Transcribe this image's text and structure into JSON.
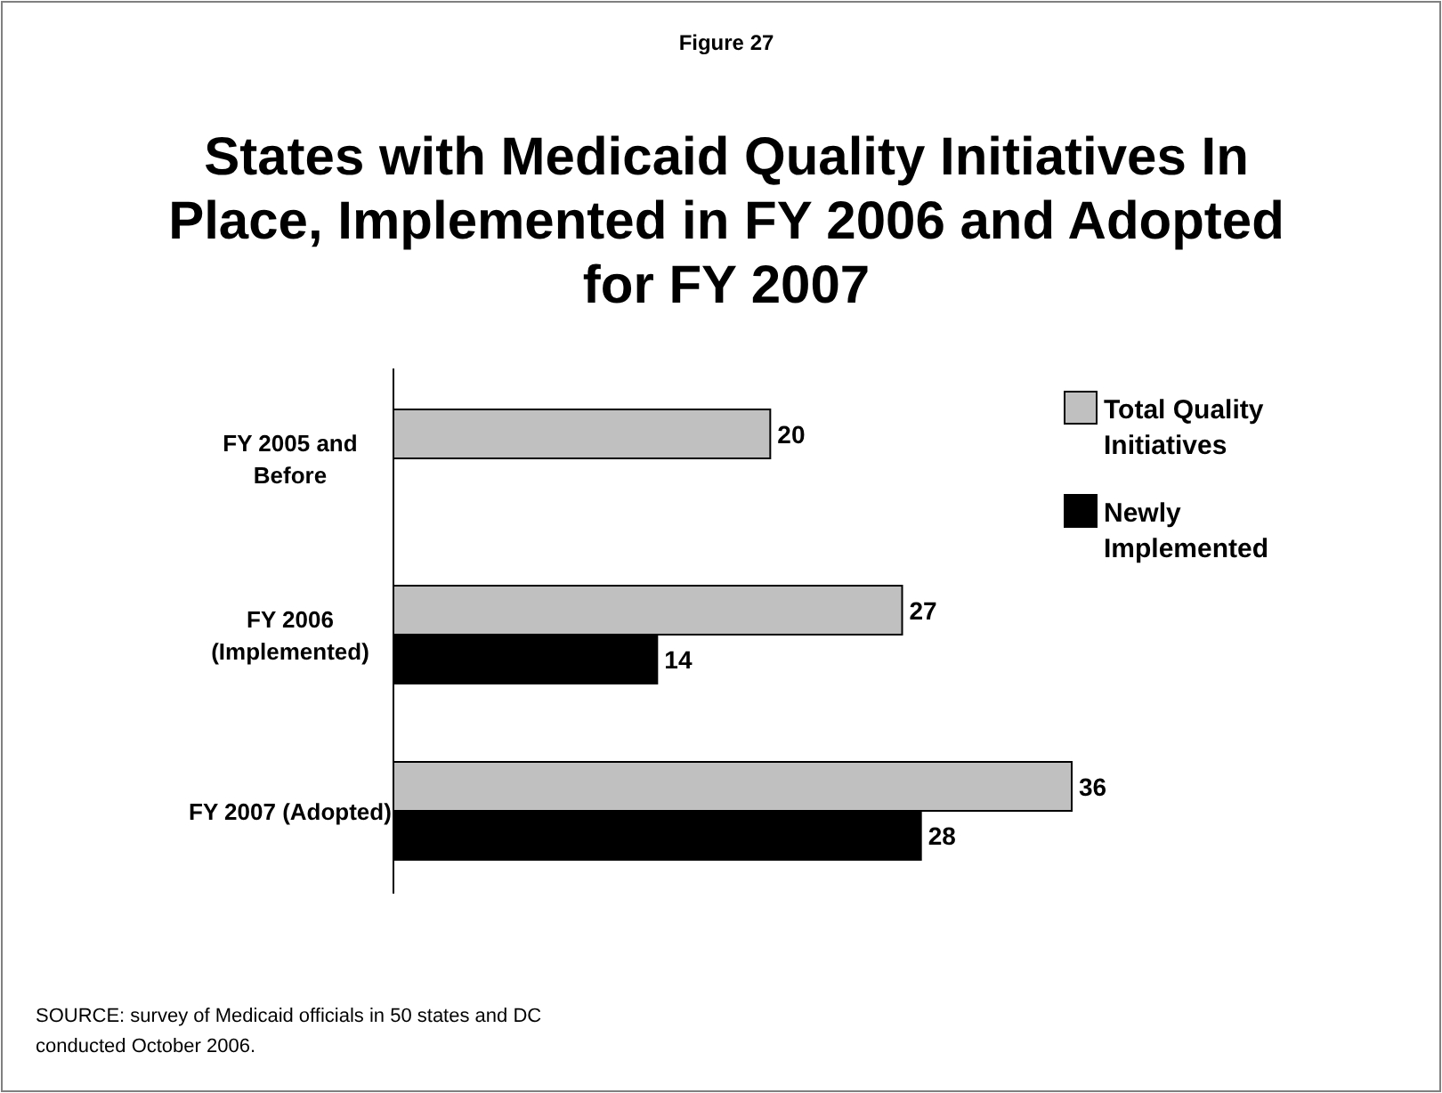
{
  "chart_data": {
    "type": "bar",
    "orientation": "horizontal",
    "subtitle": "Figure 27",
    "title": "States with Medicaid Quality Initiatives In\nPlace, Implemented in FY 2006 and Adopted\nfor FY 2007",
    "categories": [
      "FY 2005 and\nBefore",
      "FY 2006\n(Implemented)",
      "FY 2007 (Adopted)"
    ],
    "series": [
      {
        "name": "Total Quality\nInitiatives",
        "color": "#c0c0c0",
        "values": [
          20,
          27,
          36
        ]
      },
      {
        "name": "Newly\nImplemented",
        "color": "#000000",
        "values": [
          null,
          14,
          28
        ]
      }
    ],
    "data_labels": true,
    "legend": "right",
    "annotations": [
      "SOURCE: survey of Medicaid officials in 50 states and DC\nconducted October 2006."
    ]
  }
}
